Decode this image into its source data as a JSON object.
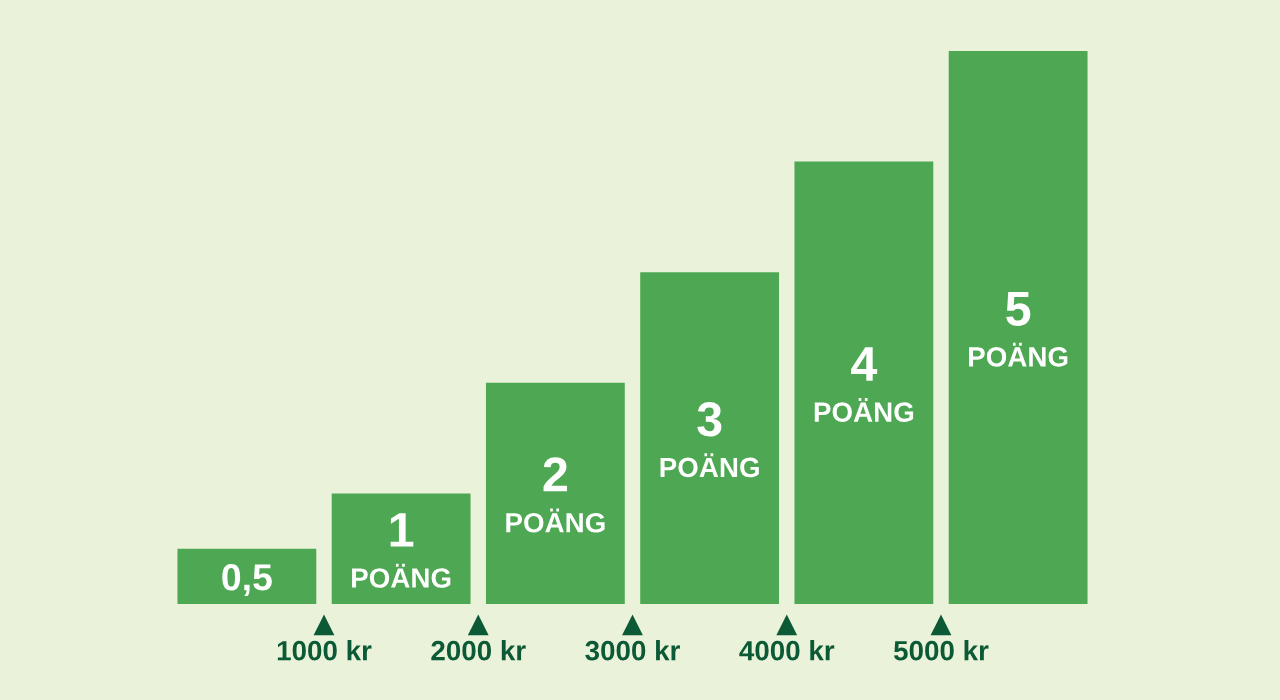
{
  "chart_data": {
    "type": "bar",
    "x": [
      500,
      1500,
      2500,
      3500,
      4500,
      5500
    ],
    "values": [
      0.5,
      1,
      2,
      3,
      4,
      5
    ],
    "color": "#4ea853",
    "value_labels": [
      "0,5",
      "1\nPOÄNG",
      "2\nPOÄNG",
      "3\nPOÄNG",
      "4\nPOÄNG",
      "5\nPOÄNG"
    ],
    "xlim": [
      0,
      6000
    ],
    "xticks": [
      {
        "value": 1000,
        "label": "1000 kr"
      },
      {
        "value": 2000,
        "label": "2000 kr"
      },
      {
        "value": 3000,
        "label": "3000 kr"
      },
      {
        "value": 4000,
        "label": "4000 kr"
      },
      {
        "value": 5000,
        "label": "5000 kr"
      }
    ],
    "ylim": [
      0,
      5
    ],
    "tick_labels": "x"
  }
}
